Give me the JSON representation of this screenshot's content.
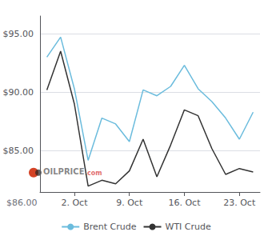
{
  "chart_data": {
    "type": "line",
    "categories": [
      null,
      null,
      "2. Oct",
      null,
      null,
      null,
      "9. Oct",
      null,
      null,
      null,
      "16. Oct",
      null,
      null,
      null,
      "23. Oct",
      null
    ],
    "series": [
      {
        "name": "Brent Crude",
        "color": "#6bbcdd",
        "values": [
          93.0,
          94.7,
          90.3,
          84.2,
          87.8,
          87.3,
          85.8,
          90.2,
          89.7,
          90.5,
          92.3,
          90.3,
          89.2,
          87.8,
          86.0,
          88.3
        ]
      },
      {
        "name": "WTI Crude",
        "color": "#333333",
        "values": [
          90.2,
          93.5,
          89.0,
          82.0,
          82.5,
          82.2,
          83.3,
          86.0,
          82.8,
          85.5,
          88.5,
          88.0,
          85.2,
          83.0,
          83.5,
          83.2
        ]
      }
    ],
    "ylim": [
      81.5,
      96.5
    ],
    "yticks": [
      {
        "value": 85.0,
        "label": "$85.00"
      },
      {
        "value": 90.0,
        "label": "$90.00"
      },
      {
        "value": 95.0,
        "label": "$95.00"
      }
    ],
    "annotations": [
      "OILPRICE",
      ".com",
      "$86.00"
    ],
    "grid": true,
    "legend": "bottom"
  }
}
